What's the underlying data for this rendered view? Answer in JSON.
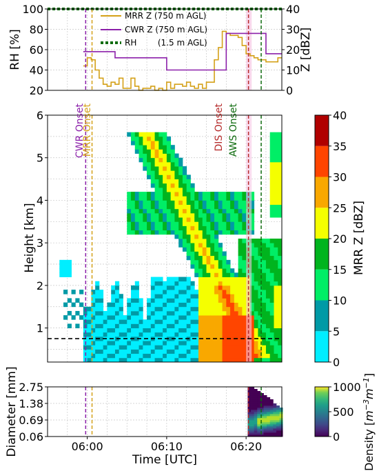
{
  "chart_data": [
    {
      "panel": "top",
      "type": "line",
      "xlabel": "",
      "ylabel": "RH [%]",
      "ylabel_right": "Z [dBZ]",
      "ylim": [
        20,
        100
      ],
      "ylim_right": [
        0,
        40
      ],
      "yticks": [
        20,
        40,
        60,
        80,
        100
      ],
      "yticks_right": [
        0,
        10,
        20,
        30,
        40
      ],
      "xlim_minutes": [
        -5,
        24.5
      ],
      "legend": {
        "placement": "top-center",
        "entries": [
          {
            "name": "MRR Z (750 m AGL)",
            "color": "#d4a017"
          },
          {
            "name": "CWR Z (750 m AGL)",
            "color": "#8b1fa9"
          },
          {
            "name": "RH        (1.5 m AGL)",
            "color": "#0e6b0e"
          }
        ]
      },
      "series": [
        {
          "name": "MRR Z (750 m AGL)",
          "color": "#d4a017",
          "step": true,
          "x_minutes": [
            -0.5,
            0,
            0.5,
            1,
            1.5,
            2,
            2.5,
            3,
            3.5,
            4,
            4.5,
            5,
            5.5,
            6,
            6.5,
            7,
            7.5,
            8,
            8.5,
            9,
            9.5,
            10,
            10.5,
            11,
            11.5,
            12,
            12.5,
            13,
            13.5,
            14,
            14.5,
            15,
            15.5,
            16,
            16.5,
            17,
            17.5,
            18,
            18.5,
            19,
            19.5,
            20,
            20.5,
            21,
            21.5,
            22,
            22.5,
            23,
            23.5,
            24,
            24.5
          ],
          "values": [
            12,
            16,
            15,
            10,
            6,
            3,
            2,
            4,
            3,
            6,
            1,
            1,
            6,
            2,
            0,
            1,
            1,
            2,
            0,
            1,
            0,
            4,
            1,
            3,
            3,
            2,
            4,
            2,
            1,
            3,
            1,
            4,
            4,
            15,
            21,
            29,
            28,
            27,
            27,
            26,
            22,
            18,
            17,
            16,
            15,
            15,
            14,
            14,
            14,
            16,
            16
          ]
        },
        {
          "name": "CWR Z (750 m AGL)",
          "color": "#8b1fa9",
          "step": true,
          "x_minutes": [
            -0.5,
            1,
            3.5,
            5,
            7.5,
            10,
            12.5,
            15,
            17.5,
            20,
            22.5,
            24.5
          ],
          "values": [
            19,
            19,
            16,
            16,
            16,
            10,
            10,
            10,
            28,
            28,
            18,
            18
          ]
        },
        {
          "name": "RH        (1.5 m AGL)",
          "color": "#0e6b0e",
          "values_summary": "constant",
          "x_minutes": [
            -5,
            24.5
          ],
          "values": [
            100,
            100
          ]
        }
      ],
      "vlines": [
        {
          "name": "CWR Onset",
          "x_minutes": -0.2,
          "color": "#8b1fa9"
        },
        {
          "name": "MRR Onset",
          "x_minutes": 0.6,
          "color": "#d4a017"
        },
        {
          "name": "DIS Onset",
          "x_minutes": 20.3,
          "color": "#b52a2a"
        },
        {
          "name": "AWS Onset",
          "x_minutes": 21.9,
          "color": "#0e6b0e"
        }
      ]
    },
    {
      "panel": "middle",
      "type": "heatmap",
      "xlabel": "",
      "ylabel": "Height [km]",
      "ylim": [
        0.2,
        6
      ],
      "yticks": [
        1,
        2,
        3,
        4,
        5,
        6
      ],
      "xlim_minutes": [
        -5,
        24.5
      ],
      "colorbar": {
        "label": "MRR Z [dBZ]",
        "ticks": [
          0,
          5,
          10,
          15,
          20,
          25,
          30,
          35,
          40
        ],
        "bins": [
          {
            "range": [
              0,
              5
            ],
            "color": "#00eeff"
          },
          {
            "range": [
              5,
              10
            ],
            "color": "#009aa6"
          },
          {
            "range": [
              10,
              15
            ],
            "color": "#00ee66"
          },
          {
            "range": [
              15,
              20
            ],
            "color": "#00b41e"
          },
          {
            "range": [
              20,
              25
            ],
            "color": "#f5ff00"
          },
          {
            "range": [
              25,
              30
            ],
            "color": "#f9a800"
          },
          {
            "range": [
              30,
              35
            ],
            "color": "#ff4500"
          },
          {
            "range": [
              35,
              40
            ],
            "color": "#b00000"
          }
        ]
      },
      "reference_line": {
        "height_km": 0.75,
        "label": "750 m AGL"
      },
      "annotations": [
        "CWR Onset",
        "MRR Onset",
        "DIS Onset",
        "AWS Onset"
      ]
    },
    {
      "panel": "bottom",
      "type": "heatmap",
      "xlabel": "Time [UTC]",
      "ylabel": "Diameter [mm]",
      "yticks": [
        "0.06",
        "0.69",
        "1.38",
        "2.75"
      ],
      "xticks": [
        {
          "label": "06:00",
          "minutes": 0
        },
        {
          "label": "06:10",
          "minutes": 10
        },
        {
          "label": "06:20",
          "minutes": 20
        }
      ],
      "colorbar": {
        "label": "Density [m^-3 m^-1]",
        "ticks": [
          0,
          500,
          1000
        ],
        "colormap": "viridis"
      }
    }
  ],
  "colorbar_labels": {
    "mrr": "MRR Z [dBZ]",
    "dsd_main": "Density [",
    "dsd_unit": "m",
    "dsd_exp1": "−3",
    "dsd_unit2": "m",
    "dsd_exp2": "−1",
    "dsd_close": "]"
  },
  "annotation_text": {
    "cwr": "CWR Onset",
    "mrr": "MRR Onset",
    "dis": "DIS Onset",
    "aws": "AWS Onset"
  },
  "colors": {
    "mrr": "#d4a017",
    "cwr": "#8b1fa9",
    "rh": "#0e6b0e",
    "dis": "#b52a2a",
    "aws": "#0e6b0e"
  }
}
